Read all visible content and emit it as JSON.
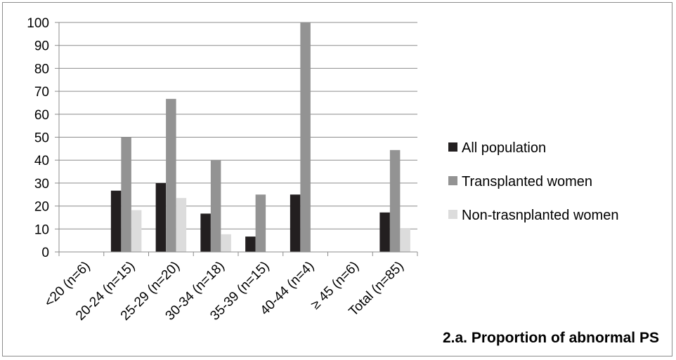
{
  "chart_data": {
    "type": "bar",
    "title": "2.a. Proportion of abnormal PS",
    "xlabel": "",
    "ylabel": "",
    "ylim": [
      0,
      100
    ],
    "yticks": [
      0,
      10,
      20,
      30,
      40,
      50,
      60,
      70,
      80,
      90,
      100
    ],
    "grid": true,
    "legend_position": "right",
    "categories": [
      "<20 (n=6)",
      "20-24 (n=15)",
      "25-29 (n=20)",
      "30-34 (n=18)",
      "35-39 (n=15)",
      "40-44 (n=4)",
      "≥ 45 (n=6)",
      "Total (n=85)"
    ],
    "series": [
      {
        "name": "All population",
        "color": "#231f20",
        "values": [
          0,
          26.7,
          30,
          16.7,
          6.7,
          25,
          0,
          17.2
        ]
      },
      {
        "name": "Transplanted women",
        "color": "#939393",
        "values": [
          0,
          50,
          66.7,
          40,
          25,
          100,
          0,
          44.4
        ]
      },
      {
        "name": "Non-trasnplanted women",
        "color": "#dcdcdc",
        "values": [
          0,
          18.2,
          23.5,
          7.7,
          0,
          0,
          0,
          10.4
        ]
      }
    ]
  }
}
